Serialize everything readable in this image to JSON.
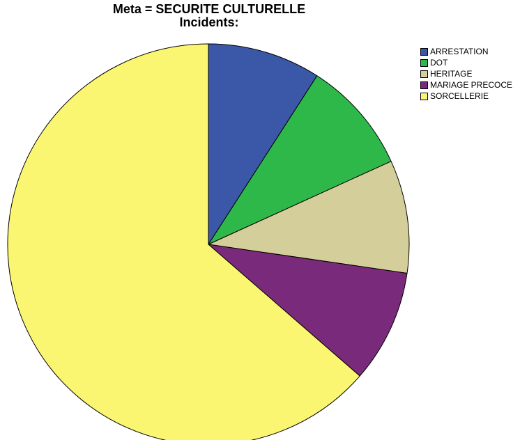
{
  "chart_data": {
    "type": "pie",
    "title": "Meta = SECURITE CULTURELLE",
    "subtitle": "Incidents:",
    "legend_position": "top-right",
    "slices": [
      {
        "label": "ARRESTATION",
        "value": 9.1,
        "color": "#3b57a8"
      },
      {
        "label": "DOT",
        "value": 9.1,
        "color": "#2fb84a"
      },
      {
        "label": "HERITAGE",
        "value": 9.1,
        "color": "#d4ce9a"
      },
      {
        "label": "MARIAGE PRECOCE",
        "value": 9.1,
        "color": "#7a2a7a"
      },
      {
        "label": "SORCELLERIE",
        "value": 63.6,
        "color": "#fbf672"
      }
    ]
  }
}
